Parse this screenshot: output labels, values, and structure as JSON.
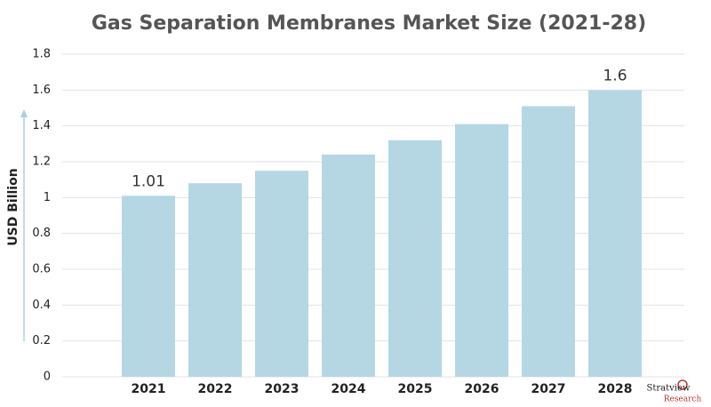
{
  "chart_data": {
    "type": "bar",
    "title": "Gas Separation Membranes Market Size (2021-28)",
    "y_label": "USD Billion",
    "categories": [
      "2021",
      "2022",
      "2023",
      "2024",
      "2025",
      "2026",
      "2027",
      "2028"
    ],
    "values": [
      1.01,
      1.08,
      1.15,
      1.24,
      1.32,
      1.41,
      1.51,
      1.6
    ],
    "value_labels": [
      "1.01",
      null,
      null,
      null,
      null,
      null,
      null,
      "1.6"
    ],
    "color": "#b4d7e3",
    "ylim": [
      0,
      1.8
    ],
    "yticks": [
      0,
      0.2,
      0.4,
      0.6,
      0.8,
      1,
      1.2,
      1.4,
      1.6,
      1.8
    ],
    "grid": true
  },
  "logo": {
    "name": "Stratview",
    "sub": "Research"
  }
}
